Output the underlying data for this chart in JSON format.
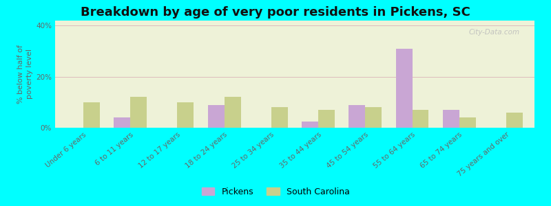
{
  "title": "Breakdown by age of very poor residents in Pickens, SC",
  "ylabel": "% below half of\npoverty level",
  "categories": [
    "Under 6 years",
    "6 to 11 years",
    "12 to 17 years",
    "18 to 24 years",
    "25 to 34 years",
    "35 to 44 years",
    "45 to 54 years",
    "55 to 64 years",
    "65 to 74 years",
    "75 years and over"
  ],
  "pickens_values": [
    0,
    4,
    0,
    9,
    0,
    2.5,
    9,
    31,
    7,
    0
  ],
  "sc_values": [
    10,
    12,
    10,
    12,
    8,
    7,
    8,
    7,
    4,
    6
  ],
  "pickens_color": "#c9a6d4",
  "sc_color": "#c8d08c",
  "background_color": "#00ffff",
  "plot_bg": "#eef2d8",
  "ylim": [
    0,
    42
  ],
  "yticks": [
    0,
    20,
    40
  ],
  "ytick_labels": [
    "0%",
    "20%",
    "40%"
  ],
  "bar_width": 0.35,
  "title_fontsize": 13,
  "axis_label_fontsize": 8,
  "tick_fontsize": 7.5,
  "legend_labels": [
    "Pickens",
    "South Carolina"
  ],
  "grid_color": "#ddbbbb",
  "watermark": "City-Data.com"
}
